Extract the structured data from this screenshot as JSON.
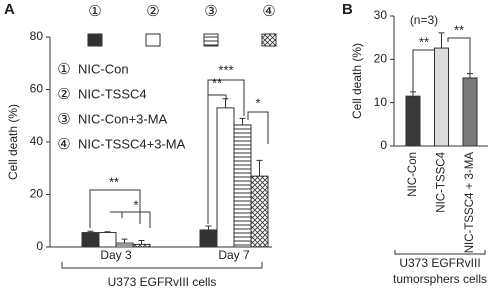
{
  "chart_data": [
    {
      "type": "bar",
      "panel": "A",
      "ylabel": "Cell death (%)",
      "xlabel": "U373 EGFRvIII cells",
      "categories": [
        "Day 3",
        "Day 7"
      ],
      "legend_markers": [
        "①",
        "②",
        "③",
        "④"
      ],
      "series": [
        {
          "name": "NIC-Con",
          "color": "#333333",
          "pattern": "solid",
          "values": [
            5.5,
            6.5
          ],
          "errors": [
            0.5,
            1.5
          ]
        },
        {
          "name": "NIC-TSSC4",
          "color": "#ffffff",
          "pattern": "solid",
          "values": [
            5.5,
            53
          ],
          "errors": [
            0.3,
            3.5
          ]
        },
        {
          "name": "NIC-Con+3-MA",
          "color": "#ffffff",
          "pattern": "horizontal",
          "values": [
            1.5,
            46.5
          ],
          "errors": [
            1.5,
            2.5
          ]
        },
        {
          "name": "NIC-TSSC4+3-MA",
          "color": "#ffffff",
          "pattern": "crosshatch",
          "values": [
            1.0,
            27
          ],
          "errors": [
            1.5,
            6
          ]
        }
      ],
      "ylim": [
        0,
        80
      ],
      "yticks": [
        0,
        20,
        40,
        60,
        80
      ],
      "annotations": [
        "**",
        "*",
        "**",
        "***",
        "*"
      ]
    },
    {
      "type": "bar",
      "panel": "B",
      "ylabel": "Cell death (%)",
      "xlabel": [
        "U373 EGFRvIII",
        "tumorsphers cells"
      ],
      "categories": [
        "NIC-Con",
        "NIC-TSSC4",
        "NIC-TSSC4 + 3-MA"
      ],
      "colors": [
        "#3a3a3a",
        "#dcdcdc",
        "#7a7a7a"
      ],
      "values": [
        11.5,
        22.6,
        15.7
      ],
      "errors": [
        1.0,
        3.5,
        1.0
      ],
      "ylim": [
        0,
        30
      ],
      "yticks": [
        0,
        10,
        20,
        30
      ],
      "annotations": [
        "(n=3)",
        "**",
        "**"
      ]
    }
  ]
}
